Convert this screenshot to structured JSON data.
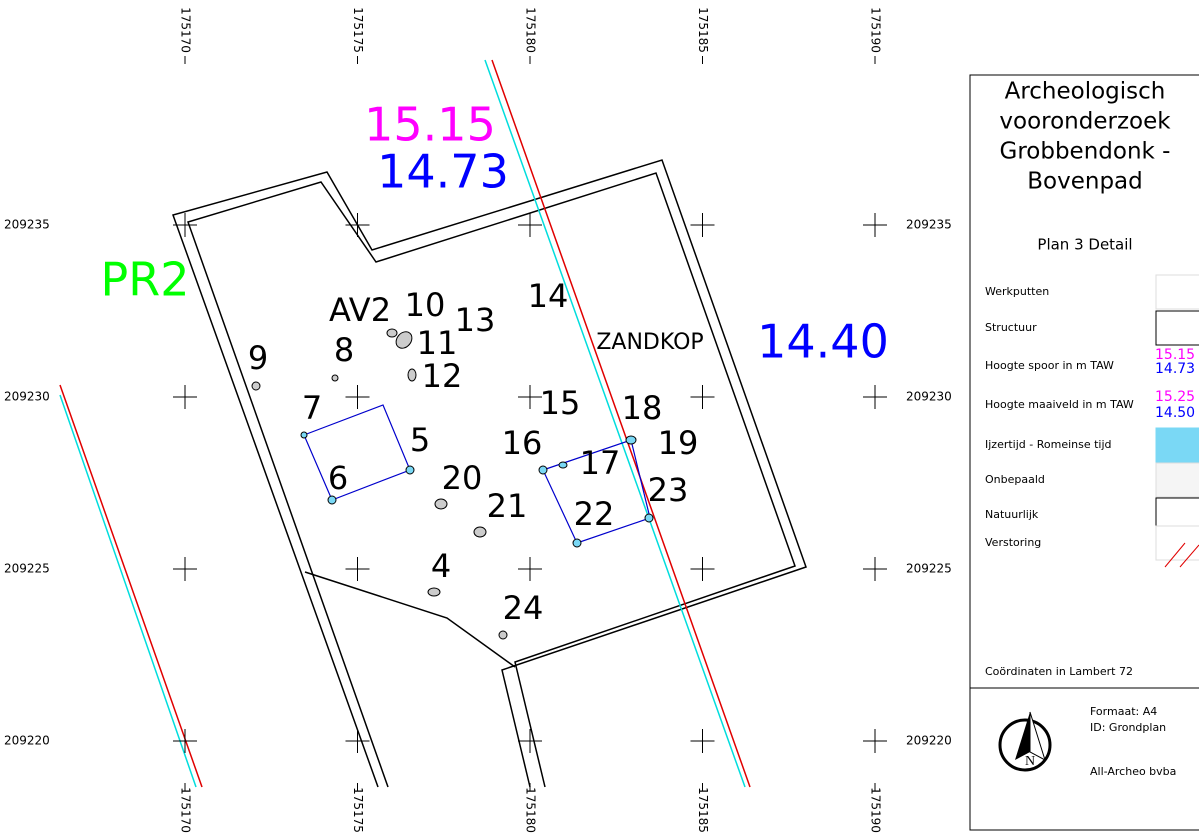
{
  "map": {
    "xticks": [
      175170,
      175175,
      175180,
      175185,
      175190
    ],
    "yticks": [
      209235,
      209230,
      209225,
      209220
    ],
    "elevations": [
      {
        "text": "15.15",
        "color": "#ff00ff"
      },
      {
        "text": "14.73",
        "color": "#0000ff"
      },
      {
        "text": "14.40",
        "color": "#0000ff"
      }
    ],
    "profile": {
      "text": "PR2",
      "color": "#00ff00"
    },
    "labels": [
      "9",
      "8",
      "AV2",
      "10",
      "13",
      "11",
      "12",
      "14",
      "ZANDKOP",
      "7",
      "5",
      "6",
      "20",
      "21",
      "15",
      "18",
      "16",
      "17",
      "19",
      "23",
      "22",
      "4",
      "24"
    ]
  },
  "legend": {
    "title": [
      "Archeologisch",
      "vooronderzoek",
      "Grobbendonk -",
      "Bovenpad"
    ],
    "subtitle": "Plan 3 Detail",
    "items": [
      "Werkputten",
      "Structuur",
      "Hoogte spoor in m TAW",
      "Hoogte maaiveld in m TAW",
      "Ijzertijd - Romeinse tijd",
      "Onbepaald",
      "Natuurlijk",
      "Verstoring"
    ],
    "samples": [
      "15.15",
      "14.73",
      "15.25",
      "14.50"
    ],
    "coords": "Coördinaten in Lambert 72",
    "format": "Formaat: A4",
    "id": "ID: Grondplan",
    "company": "All-Archeo bvba"
  }
}
